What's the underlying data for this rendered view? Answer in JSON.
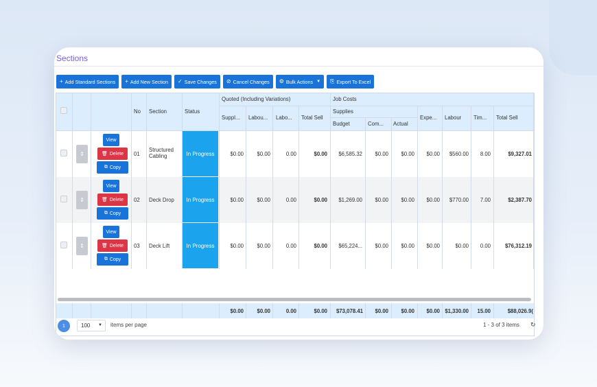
{
  "page": {
    "title": "Sections"
  },
  "toolbar": {
    "add_standard": "Add Standard Sections",
    "add_new": "Add New Section",
    "save": "Save Changes",
    "cancel": "Cancel Changes",
    "bulk": "Bulk Actions",
    "export": "Export To Excel"
  },
  "headers": {
    "no": "No",
    "section": "Section",
    "status": "Status",
    "quoted_group": "Quoted (Including Variations)",
    "job_costs_group": "Job Costs",
    "supplies_group": "Supplies",
    "q_supplies": "Suppl...",
    "q_labour": "Labou...",
    "q_labour2": "Labo...",
    "q_total_sell": "Total Sell",
    "s_budget": "Budget",
    "s_committed": "Com...",
    "s_actual": "Actual",
    "expenses": "Expe...",
    "labour": "Labour",
    "time": "Tim...",
    "total_sell": "Total Sell"
  },
  "actions": {
    "view": "View",
    "delete": "Delete",
    "copy": "Copy"
  },
  "rows": [
    {
      "no": "01",
      "section": "Structured Cabling",
      "status": "In Progress",
      "q_supplies": "$0.00",
      "q_labour": "$0.00",
      "q_labour2": "0.00",
      "q_total": "$0.00",
      "budget": "$6,585.32",
      "committed": "$0.00",
      "actual": "$0.00",
      "expenses": "$0.00",
      "labour": "$560.00",
      "time": "8.00",
      "total": "$9,327.01"
    },
    {
      "no": "02",
      "section": "Deck Drop",
      "status": "In Progress",
      "q_supplies": "$0.00",
      "q_labour": "$0.00",
      "q_labour2": "0.00",
      "q_total": "$0.00",
      "budget": "$1,269.00",
      "committed": "$0.00",
      "actual": "$0.00",
      "expenses": "$0.00",
      "labour": "$770.00",
      "time": "7.00",
      "total": "$2,387.70"
    },
    {
      "no": "03",
      "section": "Deck Lift",
      "status": "In Progress",
      "q_supplies": "$0.00",
      "q_labour": "$0.00",
      "q_labour2": "0.00",
      "q_total": "$0.00",
      "budget": "$65,224...",
      "committed": "$0.00",
      "actual": "$0.00",
      "expenses": "$0.00",
      "labour": "$0.00",
      "time": "0.00",
      "total": "$76,312.19"
    }
  ],
  "totals": {
    "q_supplies": "$0.00",
    "q_labour": "$0.00",
    "q_labour2": "0.00",
    "q_total": "$0.00",
    "budget": "$73,078.41",
    "committed": "$0.00",
    "actual": "$0.00",
    "expenses": "$0.00",
    "labour": "$1,330.00",
    "time": "15.00",
    "total": "$88,026.9("
  },
  "pager": {
    "page": "1",
    "page_size": "100",
    "items_per_page": "items per page",
    "range": "1 - 3 of 3 items"
  }
}
